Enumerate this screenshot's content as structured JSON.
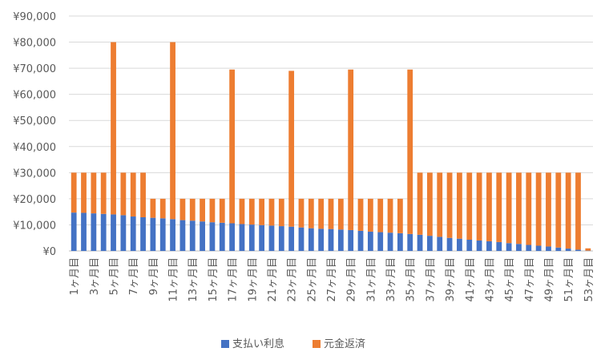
{
  "chart_data": {
    "type": "bar",
    "stacked": true,
    "title": "",
    "xlabel": "",
    "ylabel": "",
    "ylim": [
      0,
      90000
    ],
    "yticks": [
      "¥0",
      "¥10,000",
      "¥20,000",
      "¥30,000",
      "¥40,000",
      "¥50,000",
      "¥60,000",
      "¥70,000",
      "¥80,000",
      "¥90,000"
    ],
    "grid": true,
    "legend_position": "bottom",
    "categories": [
      "1ヶ月目",
      "2ヶ月目",
      "3ヶ月目",
      "4ヶ月目",
      "5ヶ月目",
      "6ヶ月目",
      "7ヶ月目",
      "8ヶ月目",
      "9ヶ月目",
      "10ヶ月目",
      "11ヶ月目",
      "12ヶ月目",
      "13ヶ月目",
      "14ヶ月目",
      "15ヶ月目",
      "16ヶ月目",
      "17ヶ月目",
      "18ヶ月目",
      "19ヶ月目",
      "20ヶ月目",
      "21ヶ月目",
      "22ヶ月目",
      "23ヶ月目",
      "24ヶ月目",
      "25ヶ月目",
      "26ヶ月目",
      "27ヶ月目",
      "28ヶ月目",
      "29ヶ月目",
      "30ヶ月目",
      "31ヶ月目",
      "32ヶ月目",
      "33ヶ月目",
      "34ヶ月目",
      "35ヶ月目",
      "36ヶ月目",
      "37ヶ月目",
      "38ヶ月目",
      "39ヶ月目",
      "40ヶ月目",
      "41ヶ月目",
      "42ヶ月目",
      "43ヶ月目",
      "44ヶ月目",
      "45ヶ月目",
      "46ヶ月目",
      "47ヶ月目",
      "48ヶ月目",
      "49ヶ月目",
      "50ヶ月目",
      "51ヶ月目",
      "52ヶ月目",
      "53ヶ月目"
    ],
    "visible_tick_labels": [
      "1ヶ月目",
      "3ヶ月目",
      "5ヶ月目",
      "7ヶ月目",
      "9ヶ月目",
      "11ヶ月目",
      "13ヶ月目",
      "15ヶ月目",
      "17ヶ月目",
      "19ヶ月目",
      "21ヶ月目",
      "23ヶ月目",
      "25ヶ月目",
      "27ヶ月目",
      "29ヶ月目",
      "31ヶ月目",
      "33ヶ月目",
      "35ヶ月目",
      "37ヶ月目",
      "39ヶ月目",
      "41ヶ月目",
      "43ヶ月目",
      "45ヶ月目",
      "47ヶ月目",
      "49ヶ月目",
      "51ヶ月目",
      "53ヶ月目"
    ],
    "series": [
      {
        "name": "支払い利息",
        "color": "#4472C4",
        "values": [
          14700,
          14600,
          14400,
          14200,
          14000,
          13700,
          13200,
          12900,
          12700,
          12500,
          12200,
          11800,
          11600,
          11300,
          11000,
          10800,
          10600,
          10300,
          10100,
          9900,
          9700,
          9500,
          9300,
          9000,
          8700,
          8500,
          8400,
          8200,
          8000,
          7700,
          7400,
          7200,
          7000,
          6800,
          6500,
          6200,
          5800,
          5400,
          5000,
          4700,
          4300,
          4000,
          3700,
          3400,
          3000,
          2700,
          2300,
          2000,
          1700,
          1300,
          900,
          500,
          100
        ]
      },
      {
        "name": "元金返済",
        "color": "#ED7D31",
        "values": [
          15300,
          15400,
          15600,
          15800,
          66000,
          16300,
          16800,
          17100,
          7300,
          7500,
          67800,
          8200,
          8400,
          8700,
          9000,
          9200,
          58900,
          9700,
          9900,
          10100,
          10300,
          10500,
          59700,
          11000,
          11300,
          11500,
          11600,
          11800,
          61500,
          12300,
          12600,
          12800,
          13000,
          13200,
          63000,
          23800,
          24200,
          24600,
          25000,
          25300,
          25700,
          26000,
          26300,
          26600,
          27000,
          27300,
          27700,
          28000,
          28300,
          28700,
          29100,
          29500,
          900
        ]
      }
    ]
  }
}
